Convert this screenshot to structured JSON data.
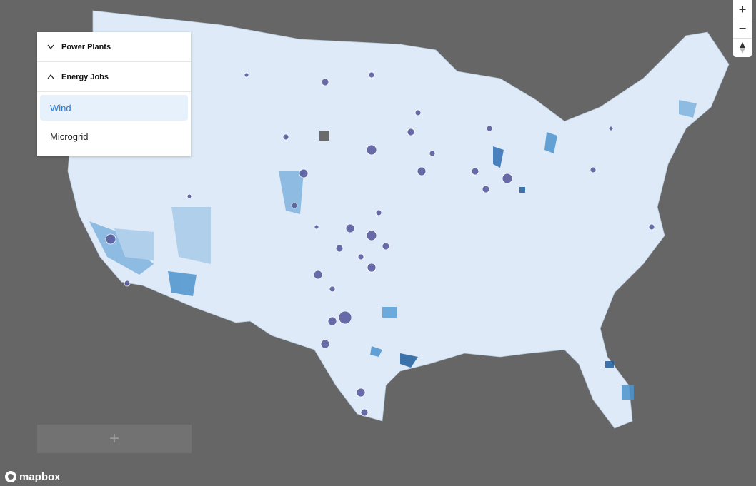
{
  "sidebar": {
    "sections": [
      {
        "title": "Power Plants",
        "expanded": false
      },
      {
        "title": "Energy Jobs",
        "expanded": true,
        "items": [
          "Wind",
          "Microgrid"
        ],
        "selected_index": 0
      }
    ]
  },
  "add_button": "+",
  "controls": {
    "zoom_in": "+",
    "zoom_out": "−"
  },
  "attribution": "mapbox"
}
